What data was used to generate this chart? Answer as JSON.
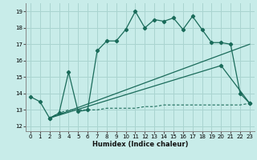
{
  "xlabel": "Humidex (Indice chaleur)",
  "background_color": "#c8ece9",
  "grid_color": "#aad4d0",
  "line_color": "#1a6b5a",
  "xlim": [
    -0.5,
    23.5
  ],
  "ylim": [
    11.7,
    19.5
  ],
  "xticks": [
    0,
    1,
    2,
    3,
    4,
    5,
    6,
    7,
    8,
    9,
    10,
    11,
    12,
    13,
    14,
    15,
    16,
    17,
    18,
    19,
    20,
    21,
    22,
    23
  ],
  "yticks": [
    12,
    13,
    14,
    15,
    16,
    17,
    18,
    19
  ],
  "line1_x": [
    0,
    1,
    2,
    3,
    4,
    5,
    6,
    7,
    8,
    9,
    10,
    11,
    12,
    13,
    14,
    15,
    16,
    17,
    18,
    19,
    20,
    21,
    22,
    23
  ],
  "line1_y": [
    13.8,
    13.5,
    12.5,
    12.8,
    15.3,
    12.9,
    13.0,
    16.6,
    17.2,
    17.2,
    17.9,
    19.0,
    18.0,
    18.5,
    18.4,
    18.6,
    17.9,
    18.7,
    17.9,
    17.1,
    17.1,
    17.0,
    14.0,
    13.4
  ],
  "line2_x": [
    2,
    3,
    4,
    5,
    6,
    7,
    8,
    9,
    10,
    11,
    12,
    13,
    14,
    15,
    16,
    17,
    18,
    19,
    20,
    21,
    22,
    23
  ],
  "line2_y": [
    12.5,
    12.8,
    13.0,
    13.0,
    13.0,
    13.0,
    13.1,
    13.1,
    13.1,
    13.1,
    13.2,
    13.2,
    13.3,
    13.3,
    13.3,
    13.3,
    13.3,
    13.3,
    13.3,
    13.3,
    13.3,
    13.4
  ],
  "line3_x": [
    2,
    23
  ],
  "line3_y": [
    12.5,
    17.0
  ],
  "line4_x": [
    2,
    20,
    23
  ],
  "line4_y": [
    12.5,
    15.7,
    13.4
  ]
}
